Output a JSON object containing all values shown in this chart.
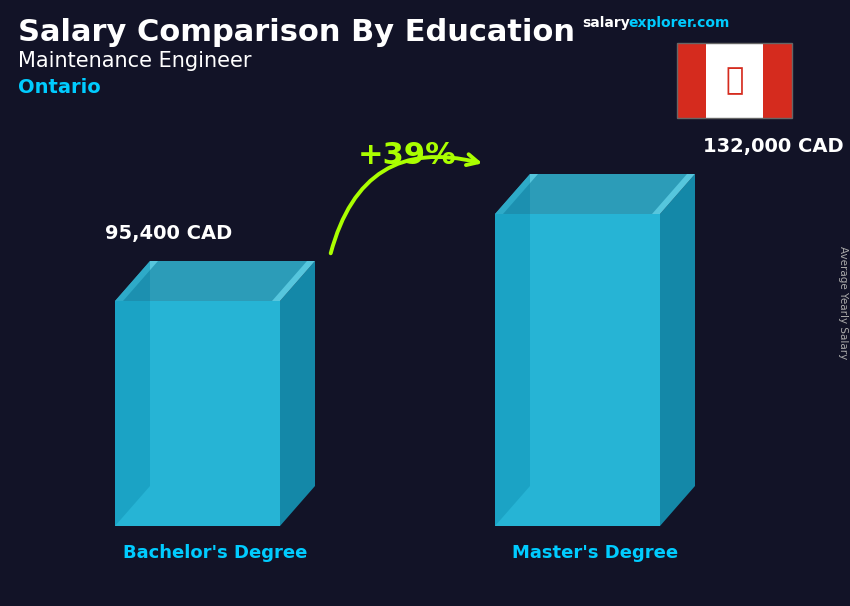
{
  "title_main": "Salary Comparison By Education",
  "subtitle": "Maintenance Engineer",
  "region": "Ontario",
  "right_label": "Average Yearly Salary",
  "categories": [
    "Bachelor's Degree",
    "Master's Degree"
  ],
  "values": [
    95400,
    132000
  ],
  "value_labels": [
    "95,400 CAD",
    "132,000 CAD"
  ],
  "pct_change": "+39%",
  "front_color": "#29ccee",
  "side_color": "#1599bb",
  "top_color": "#60e0f8",
  "inner_color": "#1080a0",
  "bg_color": "#1a1a2e",
  "photo_overlay": "#00000066",
  "title_color": "#ffffff",
  "subtitle_color": "#ffffff",
  "region_color": "#00ccff",
  "value_color": "#ffffff",
  "xlabel_color": "#00ccff",
  "pct_color": "#aaff00",
  "arrow_color": "#aaff00",
  "website_salary_color": "#ffffff",
  "website_explorer_color": "#00ccff",
  "right_label_color": "#aaaaaa",
  "flag_red": "#d52b1e",
  "flag_white": "#ffffff"
}
